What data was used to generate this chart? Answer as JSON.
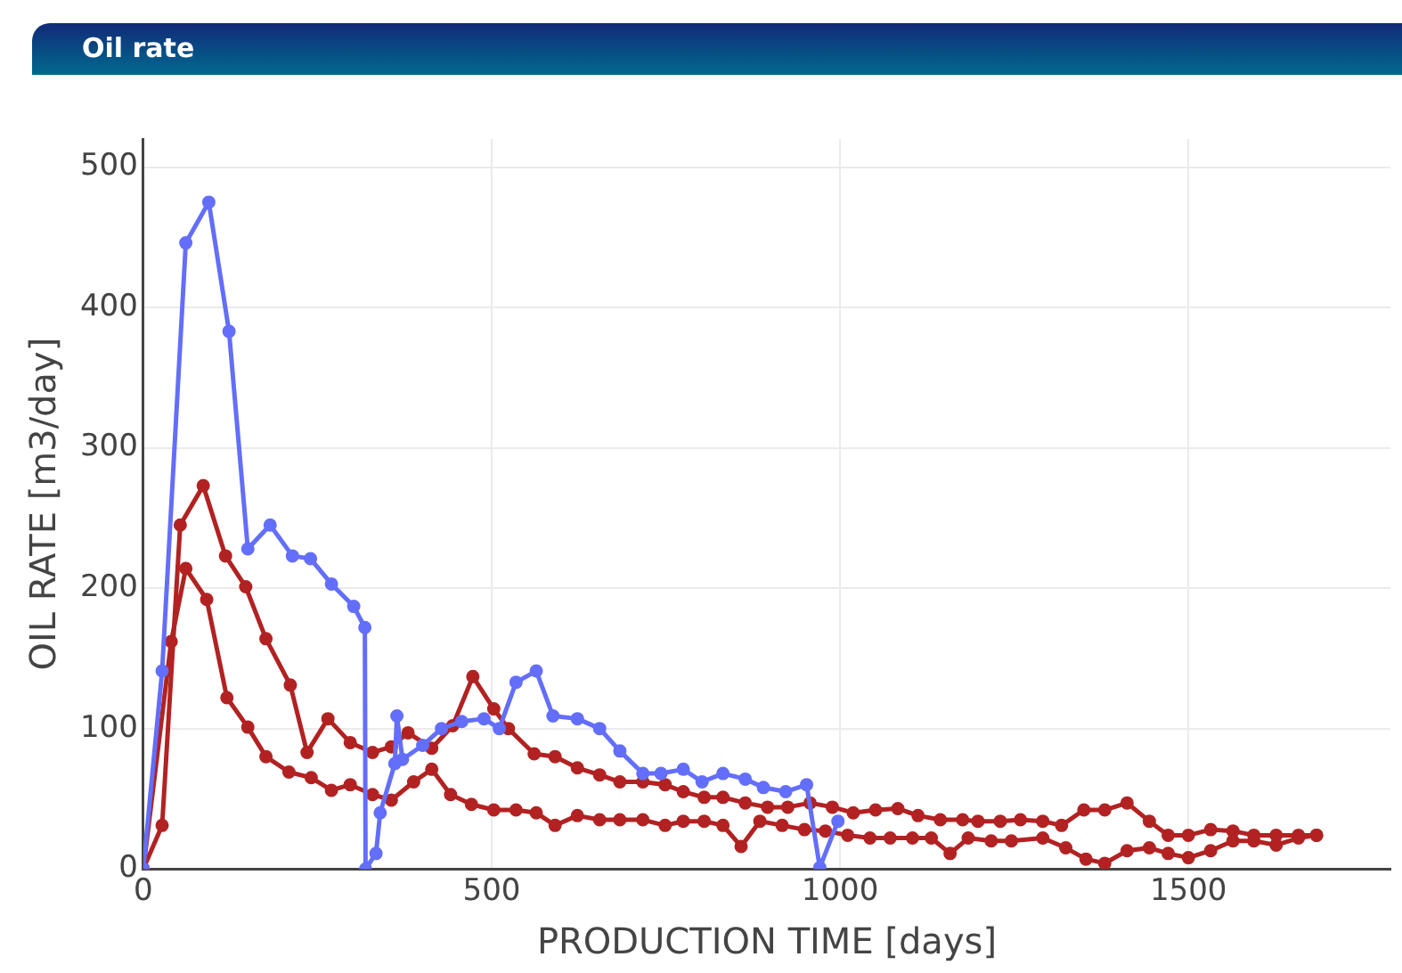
{
  "chart_data": {
    "type": "line",
    "title": "Oil rate",
    "xlabel": "PRODUCTION TIME [days]",
    "ylabel": "OIL RATE [m3/day]",
    "xlim": [
      0,
      1790
    ],
    "xticks": [
      0,
      500,
      1000,
      1500
    ],
    "ylim": [
      0,
      520
    ],
    "yticks": [
      0,
      100,
      200,
      300,
      400,
      500
    ],
    "grid": true,
    "legend": false,
    "marker": "circle",
    "line_style": "solid",
    "series": [
      {
        "color": "#636efa",
        "x": [
          0,
          27,
          61,
          94,
          123,
          150,
          182,
          214,
          240,
          270,
          302,
          318,
          319,
          334,
          340,
          361,
          364,
          372,
          401,
          428,
          457,
          489,
          511,
          535,
          564,
          588,
          623,
          655,
          684,
          717,
          743,
          775,
          802,
          832,
          864,
          890,
          922,
          952,
          971,
          997
        ],
        "values": [
          0,
          141,
          446,
          475,
          383,
          228,
          245,
          223,
          221,
          203,
          187,
          172,
          0,
          11,
          40,
          75,
          109,
          78,
          88,
          100,
          105,
          107,
          100,
          133,
          141,
          109,
          107,
          100,
          84,
          68,
          68,
          71,
          62,
          68,
          64,
          58,
          55,
          60,
          1,
          34
        ]
      },
      {
        "color": "#b22222",
        "x": [
          0,
          27,
          53,
          86,
          118,
          147,
          176,
          211,
          235,
          265,
          297,
          329,
          356,
          380,
          414,
          444,
          473,
          503,
          524,
          561,
          591,
          623,
          655,
          684,
          717,
          749,
          775,
          805,
          832,
          864,
          896,
          925,
          957,
          989,
          1019,
          1051,
          1083,
          1112,
          1144,
          1176,
          1198,
          1230,
          1259,
          1291,
          1318,
          1350,
          1380,
          1412,
          1444,
          1471,
          1500,
          1532,
          1564,
          1594,
          1626,
          1658,
          1684
        ],
        "values": [
          0,
          31,
          245,
          273,
          223,
          201,
          164,
          131,
          83,
          107,
          90,
          83,
          87,
          97,
          86,
          102,
          137,
          114,
          100,
          82,
          80,
          72,
          67,
          62,
          62,
          60,
          55,
          51,
          51,
          47,
          44,
          44,
          47,
          44,
          40,
          42,
          43,
          38,
          35,
          35,
          34,
          34,
          35,
          34,
          31,
          42,
          42,
          47,
          34,
          24,
          24,
          28,
          27,
          24,
          24,
          24,
          24
        ]
      },
      {
        "color": "#b22222",
        "x": [
          0,
          40,
          61,
          91,
          120,
          150,
          176,
          209,
          241,
          270,
          297,
          329,
          356,
          388,
          414,
          441,
          471,
          503,
          535,
          564,
          591,
          623,
          655,
          684,
          717,
          749,
          775,
          805,
          832,
          858,
          885,
          917,
          949,
          979,
          1011,
          1043,
          1072,
          1104,
          1131,
          1158,
          1184,
          1217,
          1246,
          1291,
          1324,
          1353,
          1380,
          1412,
          1444,
          1471,
          1500,
          1532,
          1564,
          1594,
          1626,
          1658,
          1684
        ],
        "values": [
          0,
          162,
          214,
          192,
          122,
          101,
          80,
          69,
          65,
          56,
          60,
          53,
          49,
          62,
          71,
          53,
          46,
          42,
          42,
          40,
          31,
          38,
          35,
          35,
          35,
          31,
          34,
          34,
          31,
          16,
          34,
          31,
          28,
          27,
          24,
          22,
          22,
          22,
          22,
          11,
          22,
          20,
          20,
          22,
          15,
          7,
          4,
          13,
          15,
          11,
          8,
          13,
          20,
          20,
          17,
          22,
          24
        ]
      }
    ]
  }
}
